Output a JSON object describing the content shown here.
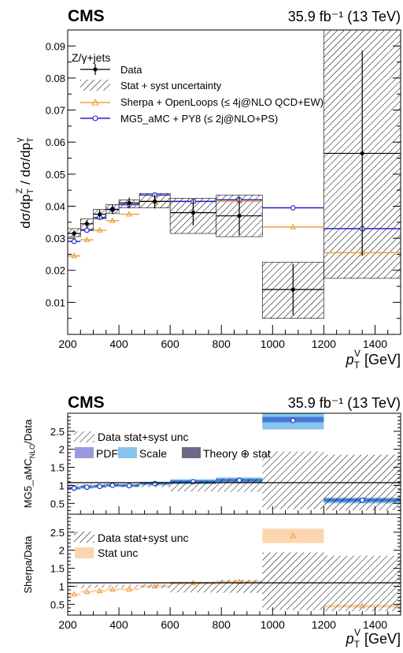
{
  "chart_data": [
    {
      "type": "scatter",
      "experiment": "CMS",
      "lumi_label": "35.9 fb⁻¹ (13 TeV)",
      "process_label": "Z/γ+jets",
      "ylabel": "dσ/dp_T^Z / dσ/dp_T^γ",
      "xlabel": "p_T^V [GeV]",
      "xlim": [
        200,
        1500
      ],
      "ylim": [
        0,
        0.095
      ],
      "legend_placement": "top-left",
      "x_ticks": [
        200,
        400,
        600,
        800,
        1000,
        1200,
        1400
      ],
      "y_ticks": [
        0.01,
        0.02,
        0.03,
        0.04,
        0.05,
        0.06,
        0.07,
        0.08,
        0.09
      ],
      "bin_edges": [
        200,
        250,
        300,
        350,
        400,
        480,
        600,
        780,
        960,
        1200,
        1500
      ],
      "series": [
        {
          "name": "Data",
          "x": [
            225,
            275,
            325,
            375,
            440,
            540,
            690,
            870,
            1080,
            1350
          ],
          "values": [
            0.0315,
            0.0345,
            0.0375,
            0.039,
            0.041,
            0.0415,
            0.038,
            0.037,
            0.014,
            0.0565
          ],
          "err_low": [
            0.001,
            0.0012,
            0.0014,
            0.0015,
            0.0017,
            0.0022,
            0.004,
            0.006,
            0.008,
            0.032
          ],
          "err_high": [
            0.001,
            0.0012,
            0.0014,
            0.0015,
            0.0017,
            0.0022,
            0.004,
            0.006,
            0.008,
            0.032
          ]
        },
        {
          "name": "Stat + syst uncertainty",
          "low": [
            0.0305,
            0.0328,
            0.036,
            0.0378,
            0.0395,
            0.0395,
            0.0315,
            0.0305,
            0.005,
            0.0175
          ],
          "high": [
            0.033,
            0.036,
            0.039,
            0.0405,
            0.042,
            0.044,
            0.0425,
            0.0435,
            0.0225,
            0.095
          ]
        },
        {
          "name": "Sherpa + OpenLoops (≤ 4j@NLO QCD+EW)",
          "values": [
            0.0245,
            0.0295,
            0.0325,
            0.0355,
            0.0375,
            0.0415,
            0.0415,
            0.0415,
            0.0335,
            0.0255
          ]
        },
        {
          "name": "MG5_aMC + PY8 (≤ 2j@NLO+PS)",
          "values": [
            0.029,
            0.0325,
            0.0365,
            0.039,
            0.0405,
            0.0435,
            0.0415,
            0.042,
            0.0395,
            0.033
          ]
        }
      ]
    },
    {
      "type": "scatter",
      "experiment": "CMS",
      "lumi_label": "35.9 fb⁻¹ (13 TeV)",
      "ylabel": "MG5_aMC_NLO/Data",
      "xlim": [
        200,
        1500
      ],
      "ylim": [
        0.2,
        3.0
      ],
      "y_ticks": [
        0.5,
        1,
        1.5,
        2,
        2.5
      ],
      "legend": [
        "Data stat+syst unc",
        "PDF",
        "Scale",
        "Theory ⊕ stat"
      ],
      "colors": {
        "pdf": "#9999dd",
        "scale": "#88c4ee",
        "theory": "#6a6a88",
        "band": "#3a6fd0"
      },
      "data_unc_low": [
        0.97,
        0.95,
        0.96,
        0.97,
        0.96,
        0.95,
        0.83,
        0.82,
        0.34,
        0.31
      ],
      "data_unc_high": [
        1.03,
        1.04,
        1.04,
        1.04,
        1.04,
        1.06,
        1.12,
        1.18,
        1.94,
        1.85
      ],
      "ratio": [
        0.92,
        0.95,
        0.97,
        1.0,
        0.99,
        1.05,
        1.1,
        1.14,
        2.8,
        0.59
      ],
      "band_low": [
        0.88,
        0.91,
        0.93,
        0.96,
        0.95,
        1.0,
        1.03,
        1.06,
        2.55,
        0.5
      ],
      "band_high": [
        0.97,
        1.0,
        1.02,
        1.05,
        1.04,
        1.1,
        1.17,
        1.22,
        3.0,
        0.66
      ],
      "theory_low": [
        0.9,
        0.93,
        0.95,
        0.98,
        0.97,
        1.03,
        1.06,
        1.1,
        2.75,
        0.55
      ],
      "theory_high": [
        0.95,
        0.98,
        1.0,
        1.03,
        1.02,
        1.08,
        1.14,
        1.18,
        2.9,
        0.63
      ]
    },
    {
      "type": "scatter",
      "ylabel": "Sherpa/Data",
      "xlabel": "p_T^V [GeV]",
      "xlim": [
        200,
        1500
      ],
      "ylim": [
        0.2,
        3.0
      ],
      "x_ticks": [
        200,
        400,
        600,
        800,
        1000,
        1200,
        1400
      ],
      "y_ticks": [
        0.5,
        1,
        1.5,
        2,
        2.5
      ],
      "legend": [
        "Data stat+syst unc",
        "Stat unc"
      ],
      "colors": {
        "stat": "#fcd5b0",
        "marker": "#f0a040"
      },
      "ratio": [
        0.78,
        0.85,
        0.87,
        0.91,
        0.92,
        1.0,
        1.09,
        1.12,
        2.4,
        0.45
      ],
      "band_low": [
        0.75,
        0.82,
        0.84,
        0.88,
        0.89,
        0.97,
        1.05,
        1.08,
        2.2,
        0.41
      ],
      "band_high": [
        0.81,
        0.88,
        0.9,
        0.94,
        0.95,
        1.03,
        1.13,
        1.16,
        2.6,
        0.49
      ]
    }
  ]
}
